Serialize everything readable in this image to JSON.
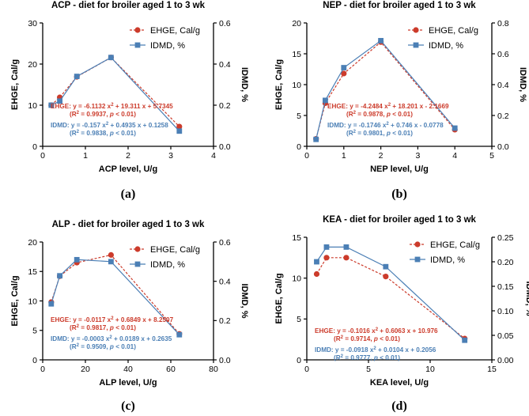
{
  "colors": {
    "ehge": "#cc3b2b",
    "idmd": "#4b7fb5",
    "axis": "#000000"
  },
  "chart_data": [
    {
      "type": "line",
      "panel_label": "(a)",
      "title": "ACP - diet for broiler aged 1 to 3 wk",
      "xlabel": "ACP level, U/g",
      "ylabel": "EHGE, Cal/g",
      "y2label": "IDMD, %",
      "xlim": [
        0,
        4
      ],
      "xticks": [
        "0",
        "1",
        "2",
        "3",
        "4"
      ],
      "ylim": [
        0,
        30
      ],
      "yticks": [
        "0",
        "10",
        "20",
        "30"
      ],
      "y2lim": [
        0,
        0.6
      ],
      "y2ticks": [
        "0.0",
        "0.2",
        "0.4",
        "0.6"
      ],
      "series": [
        {
          "name": "EHGE, Cal/g",
          "axis": "left",
          "marker": "circle",
          "x": [
            0.2,
            0.4,
            0.8,
            1.6,
            3.2
          ],
          "values": [
            10.0,
            11.9,
            16.9,
            21.6,
            4.8
          ]
        },
        {
          "name": "IDMD, %",
          "axis": "right",
          "marker": "square",
          "x": [
            0.2,
            0.4,
            0.8,
            1.6,
            3.2
          ],
          "values": [
            0.2,
            0.22,
            0.34,
            0.432,
            0.074
          ]
        }
      ],
      "legend_position": "top-right",
      "annotations": [
        {
          "series": "EHGE",
          "line1": "EHGE: y = -6.1132 x² + 19.311 x + 5.7345",
          "line2": "(R² = 0.9937, p < 0.01)"
        },
        {
          "series": "IDMD",
          "line1": "IDMD: y = -0.157 x² + 0.4935 x + 0.1258",
          "line2": "(R² = 0.9838, p < 0.01)"
        }
      ]
    },
    {
      "type": "line",
      "panel_label": "(b)",
      "title": "NEP - diet for broiler aged 1 to 3 wk",
      "xlabel": "NEP level, U/g",
      "ylabel": "EHGE, Cal/g",
      "y2label": "IDMD, %",
      "xlim": [
        0,
        5
      ],
      "xticks": [
        "0",
        "1",
        "2",
        "3",
        "4",
        "5"
      ],
      "ylim": [
        0,
        20
      ],
      "yticks": [
        "0",
        "5",
        "10",
        "15",
        "20"
      ],
      "y2lim": [
        0,
        0.8
      ],
      "y2ticks": [
        "0.0",
        "0.2",
        "0.4",
        "0.6",
        "0.8"
      ],
      "series": [
        {
          "name": "EHGE, Cal/g",
          "axis": "left",
          "marker": "circle",
          "x": [
            0.25,
            0.5,
            1,
            2,
            4
          ],
          "values": [
            1.2,
            7.0,
            11.8,
            16.9,
            2.7
          ]
        },
        {
          "name": "IDMD, %",
          "axis": "right",
          "marker": "square",
          "x": [
            0.25,
            0.5,
            1,
            2,
            4
          ],
          "values": [
            0.045,
            0.298,
            0.51,
            0.685,
            0.118
          ]
        }
      ],
      "legend_position": "top-right",
      "annotations": [
        {
          "series": "EHGE",
          "line1": "EHGE: y = -4.2484 x² + 18.201 x - 2.1669",
          "line2": "(R² = 0.9878, p < 0.01)"
        },
        {
          "series": "IDMD",
          "line1": "IDMD: y = -0.1746 x² + 0.746 x - 0.0778",
          "line2": "(R² = 0.9801, p < 0.01)"
        }
      ]
    },
    {
      "type": "line",
      "panel_label": "(c)",
      "title": "ALP - diet for broiler aged 1 to 3 wk",
      "xlabel": "ALP level, U/g",
      "ylabel": "EHGE, Cal/g",
      "y2label": "IDMD, %",
      "xlim": [
        0,
        80
      ],
      "xticks": [
        "0",
        "20",
        "40",
        "60",
        "80"
      ],
      "ylim": [
        0,
        20
      ],
      "yticks": [
        "0",
        "5",
        "10",
        "15",
        "20"
      ],
      "y2lim": [
        0,
        0.6
      ],
      "y2ticks": [
        "0.0",
        "0.2",
        "0.4",
        "0.6"
      ],
      "series": [
        {
          "name": "EHGE, Cal/g",
          "axis": "left",
          "marker": "circle",
          "x": [
            4,
            8,
            16,
            32,
            64
          ],
          "values": [
            9.8,
            14.2,
            16.5,
            17.8,
            4.4
          ]
        },
        {
          "name": "IDMD, %",
          "axis": "right",
          "marker": "square",
          "x": [
            4,
            8,
            16,
            32,
            64
          ],
          "values": [
            0.285,
            0.428,
            0.51,
            0.5,
            0.128
          ]
        }
      ],
      "legend_position": "top-right",
      "annotations": [
        {
          "series": "EHGE",
          "line1": "EHGE: y = -0.0117 x² + 0.6849 x + 8.2507",
          "line2": "(R² = 0.9817, p < 0.01)"
        },
        {
          "series": "IDMD",
          "line1": "IDMD: y = -0.0003 x² + 0.0189 x + 0.2635",
          "line2": "(R² = 0.9509, p < 0.01)"
        }
      ]
    },
    {
      "type": "line",
      "panel_label": "(d)",
      "title": "KEA - diet for broiler aged 1 to 3 wk",
      "xlabel": "KEA level, U/g",
      "ylabel": "EHGE, Cal/g",
      "y2label": "IDMD, %",
      "xlim": [
        0,
        15
      ],
      "xticks": [
        "0",
        "5",
        "10",
        "15"
      ],
      "ylim": [
        0,
        15
      ],
      "yticks": [
        "0",
        "5",
        "10",
        "15"
      ],
      "y2lim": [
        0,
        0.25
      ],
      "y2ticks": [
        "0.00",
        "0.05",
        "0.10",
        "0.15",
        "0.20",
        "0.25"
      ],
      "series": [
        {
          "name": "EHGE, Cal/g",
          "axis": "left",
          "marker": "circle",
          "x": [
            0.8,
            1.6,
            3.2,
            6.4,
            12.8
          ],
          "values": [
            10.5,
            12.5,
            12.5,
            10.2,
            2.6
          ]
        },
        {
          "name": "IDMD, %",
          "axis": "right",
          "marker": "square",
          "x": [
            0.8,
            1.6,
            3.2,
            6.4,
            12.8
          ],
          "values": [
            0.2,
            0.23,
            0.23,
            0.19,
            0.04
          ]
        }
      ],
      "legend_position": "top-right",
      "annotations": [
        {
          "series": "EHGE",
          "line1": "EHGE: y = -0.1016 x² + 0.6063 x + 10.976",
          "line2": "(R² = 0.9714, p < 0.01)"
        },
        {
          "series": "IDMD",
          "line1": "IDMD: y = -0.0918 x² + 0.0104 x + 0.2056",
          "line2": "(R² = 0.9777, p < 0.01)"
        }
      ]
    }
  ]
}
